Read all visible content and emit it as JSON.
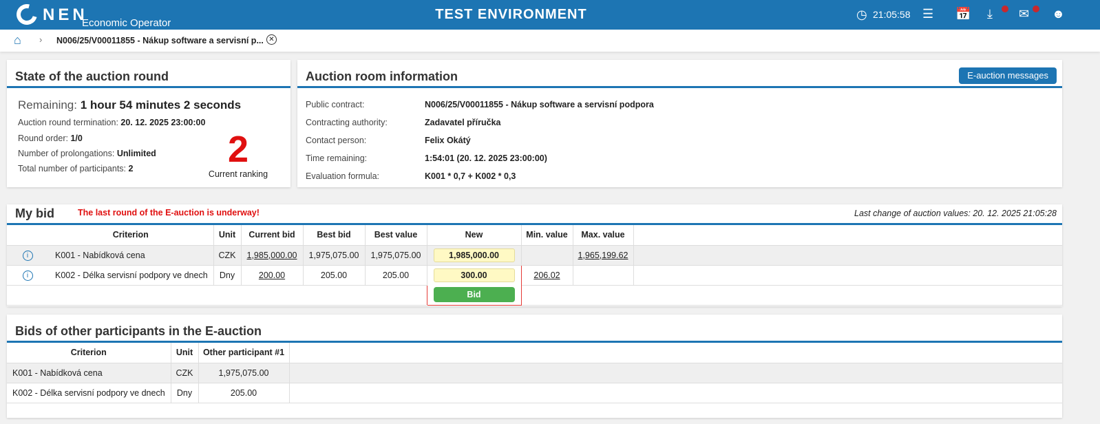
{
  "header": {
    "logo_text": "NEN",
    "subtitle": "Economic Operator",
    "environment": "TEST ENVIRONMENT",
    "clock": "21:05:58",
    "brand_color": "#1d75b3"
  },
  "breadcrumb": {
    "current": "N006/25/V00011855 - Nákup software a servisní p..."
  },
  "state": {
    "title": "State of the auction round",
    "remaining_label": "Remaining:",
    "remaining_value": "1 hour 54 minutes 2 seconds",
    "termination_label": "Auction round termination:",
    "termination_value": "20. 12. 2025 23:00:00",
    "round_label": "Round order:",
    "round_value": "1/0",
    "prolong_label": "Number of prolongations:",
    "prolong_value": "Unlimited",
    "participants_label": "Total number of participants:",
    "participants_value": "2",
    "ranking": "2",
    "ranking_label": "Current ranking"
  },
  "room": {
    "title": "Auction room information",
    "messages_button": "E-auction messages",
    "rows": [
      {
        "label": "Public contract:",
        "value": "N006/25/V00011855 - Nákup software a servisní podpora"
      },
      {
        "label": "Contracting authority:",
        "value": "Zadavatel příručka"
      },
      {
        "label": "Contact person:",
        "value": "Felix Okátý"
      },
      {
        "label": "Time remaining:",
        "value": "1:54:01 (20. 12. 2025 23:00:00)"
      },
      {
        "label": "Evaluation formula:",
        "value": "K001 * 0,7 + K002 * 0,3"
      }
    ]
  },
  "mybid": {
    "title": "My bid",
    "warning": "The last round of the E-auction is underway!",
    "last_change": "Last change of auction values: 20. 12. 2025 21:05:28",
    "columns": [
      "Criterion",
      "Unit",
      "Current bid",
      "Best bid",
      "Best value",
      "New",
      "Min. value",
      "Max. value"
    ],
    "rows": [
      {
        "criterion": "K001 - Nabídková cena",
        "unit": "CZK",
        "current": "1,985,000.00",
        "best_bid": "1,975,075.00",
        "best_value": "1,975,075.00",
        "new": "1,985,000.00",
        "min": "",
        "max": "1,965,199.62"
      },
      {
        "criterion": "K002 - Délka servisní podpory ve dnech",
        "unit": "Dny",
        "current": "200.00",
        "best_bid": "205.00",
        "best_value": "205.00",
        "new": "300.00",
        "min": "206.02",
        "max": ""
      }
    ],
    "bid_button": "Bid"
  },
  "others": {
    "title": "Bids of other participants in the E-auction",
    "columns": [
      "Criterion",
      "Unit",
      "Other participant #1"
    ],
    "rows": [
      {
        "criterion": "K001 - Nabídková cena",
        "unit": "CZK",
        "value": "1,975,075.00"
      },
      {
        "criterion": "K002 - Délka servisní podpory ve dnech",
        "unit": "Dny",
        "value": "205.00"
      }
    ]
  }
}
